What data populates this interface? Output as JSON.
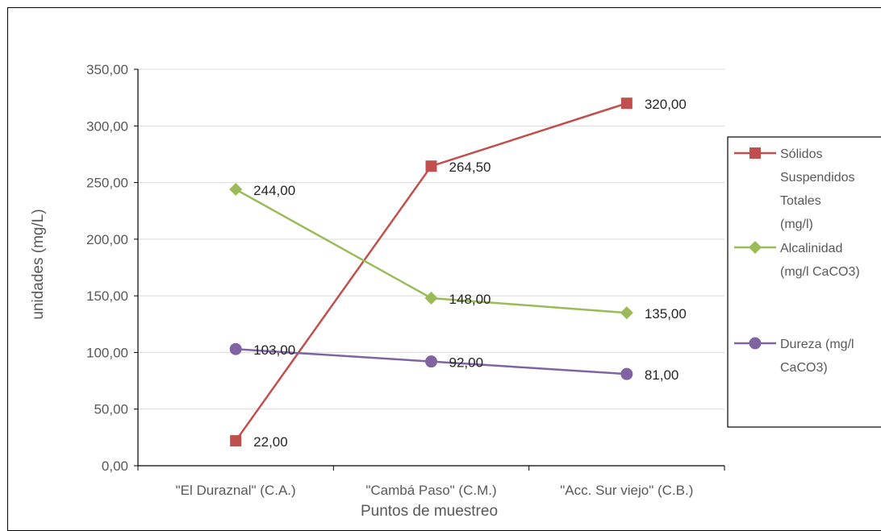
{
  "chart_data": {
    "type": "line",
    "categories": [
      "\"El Duraznal\" (C.A.)",
      "\"Cambá Paso\" (C.M.)",
      "\"Acc. Sur viejo\" (C.B.)"
    ],
    "xlabel": "Puntos de muestreo",
    "ylabel": "unidades (mg/L)",
    "ylim": [
      0,
      350
    ],
    "yticks": [
      "0,00",
      "50,00",
      "100,00",
      "150,00",
      "200,00",
      "250,00",
      "300,00",
      "350,00"
    ],
    "grid": true,
    "legend_position": "right",
    "series": [
      {
        "name": "Sólidos Suspendidos Totales (mg/l)",
        "legend_lines": [
          "Sólidos",
          "Suspendidos",
          "Totales",
          "(mg/l)"
        ],
        "values": [
          22,
          264.5,
          320
        ],
        "labels": [
          "22,00",
          "264,50",
          "320,00"
        ],
        "color": "#c0504d",
        "marker": "square"
      },
      {
        "name": "Alcalinidad (mg/l CaCO3)",
        "legend_lines": [
          "Alcalinidad",
          "(mg/l CaCO3)"
        ],
        "values": [
          244,
          148,
          135
        ],
        "labels": [
          "244,00",
          "148,00",
          "135,00"
        ],
        "color": "#9bbb59",
        "marker": "diamond"
      },
      {
        "name": "Dureza (mg/l CaCO3)",
        "legend_lines": [
          "Dureza (mg/l",
          "CaCO3)"
        ],
        "values": [
          103,
          92,
          81
        ],
        "labels": [
          "103,00",
          "92,00",
          "81,00"
        ],
        "color": "#8064a2",
        "marker": "circle"
      }
    ]
  }
}
